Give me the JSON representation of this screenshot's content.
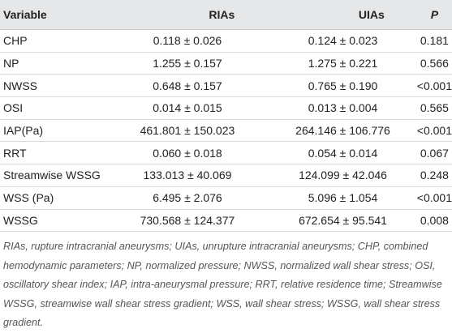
{
  "table": {
    "header": [
      "Variable",
      "RIAs",
      "UIAs",
      "P"
    ],
    "rows": [
      [
        "CHP",
        "0.118 ± 0.026",
        "0.124 ± 0.023",
        "0.181"
      ],
      [
        "NP",
        "1.255 ± 0.157",
        "1.275 ± 0.221",
        "0.566"
      ],
      [
        "NWSS",
        "0.648 ± 0.157",
        "0.765 ± 0.190",
        "<0.001"
      ],
      [
        "OSI",
        "0.014 ± 0.015",
        "0.013 ± 0.004",
        "0.565"
      ],
      [
        "IAP(Pa)",
        "461.801 ± 150.023",
        "264.146 ± 106.776",
        "<0.001"
      ],
      [
        "RRT",
        "0.060 ± 0.018",
        "0.054 ± 0.014",
        "0.067"
      ],
      [
        "Streamwise WSSG",
        "133.013 ± 40.069",
        "124.099 ± 42.046",
        "0.248"
      ],
      [
        "WSS (Pa)",
        "6.495 ± 2.076",
        "5.096 ± 1.054",
        "<0.001"
      ],
      [
        "WSSG",
        "730.568 ± 124.377",
        "672.654 ± 95.541",
        "0.008"
      ]
    ],
    "footnote": "RIAs, rupture intracranial aneurysms; UIAs, unrupture intracranial aneurysms; CHP, combined hemodynamic parameters; NP, normalized pressure; NWSS, normalized wall shear stress; OSI, oscillatory shear index; IAP, intra-aneurysmal pressure; RRT, relative residence time; Streamwise WSSG, streamwise wall shear stress gradient; WSS, wall shear stress; WSSG, wall shear stress gradient."
  }
}
